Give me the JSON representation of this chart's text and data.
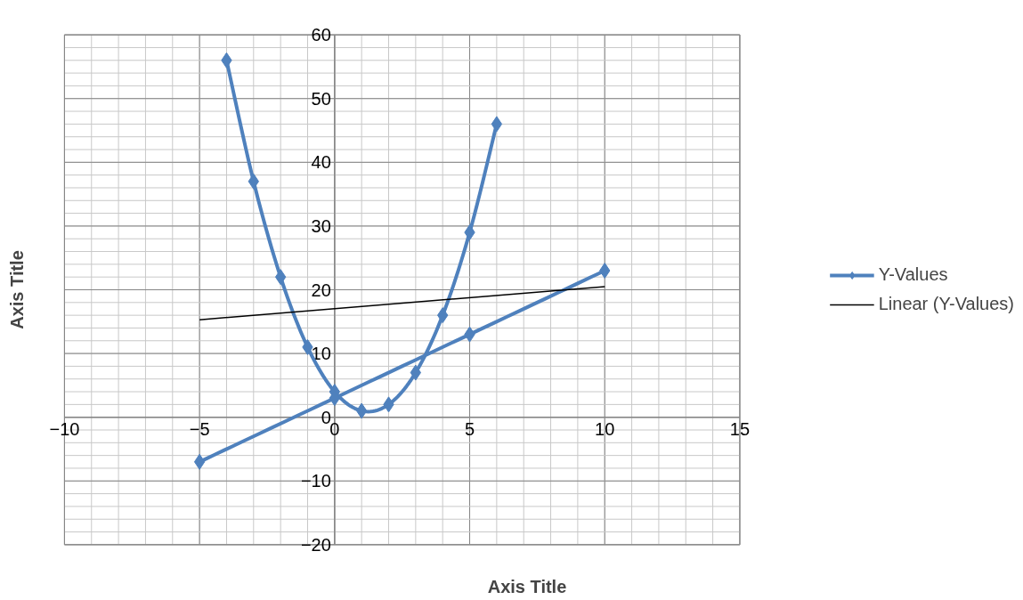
{
  "chart_data": {
    "type": "line",
    "xlabel": "Axis Title",
    "ylabel": "Axis Title",
    "xlim": [
      -10,
      15
    ],
    "ylim": [
      -20,
      60
    ],
    "xticks": [
      -10,
      -5,
      0,
      5,
      10,
      15
    ],
    "yticks": [
      -20,
      -10,
      0,
      10,
      20,
      30,
      40,
      50,
      60
    ],
    "grid": true,
    "legend": "right",
    "marker": "diamond",
    "line_style": "solid",
    "series": [
      {
        "name": "Y-Values",
        "color": "#4f81bd",
        "x": [
          -4,
          -3,
          -2,
          -1,
          0,
          1,
          2,
          3,
          4,
          5,
          6,
          null,
          -5,
          0,
          5,
          10
        ],
        "values": [
          56,
          37,
          22,
          11,
          4,
          1,
          2,
          7,
          16,
          29,
          46,
          null,
          -7,
          3,
          13,
          23
        ]
      },
      {
        "name": "Linear (Y-Values)",
        "color": "#000000",
        "marker": "none",
        "x": [
          -5,
          10
        ],
        "values": [
          15.3,
          20.5
        ]
      }
    ]
  }
}
